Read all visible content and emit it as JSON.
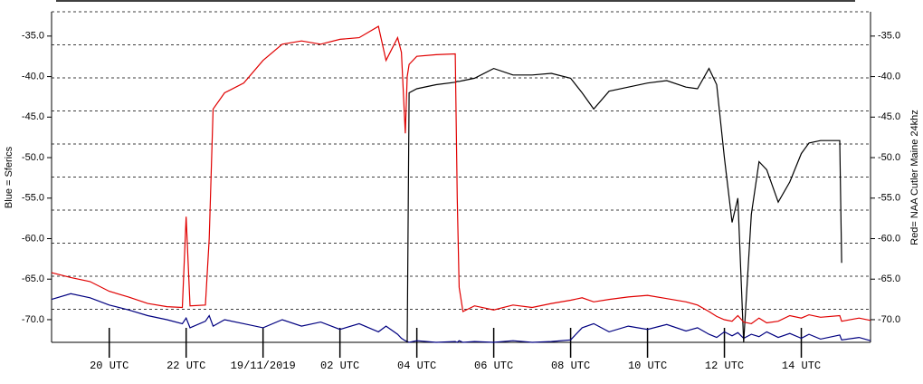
{
  "chart_data": {
    "type": "line",
    "y_label": "Blue = Sferics",
    "y2_label": "Red= NAA Cutler Maine 24khz",
    "x": [
      18.5,
      19,
      19.5,
      20,
      20.5,
      21,
      21.5,
      21.9,
      22.0,
      22.1,
      22.5,
      22.6,
      22.7,
      23,
      23.5,
      24,
      24.5,
      25,
      25.5,
      26,
      26.5,
      27,
      27.2,
      27.5,
      27.6,
      27.7,
      27.75,
      27.8,
      28,
      28.5,
      29,
      29.05,
      29.1,
      29.2,
      29.5,
      30,
      30.5,
      31,
      31.5,
      32,
      32.3,
      32.6,
      33,
      33.5,
      34,
      34.5,
      35,
      35.3,
      35.6,
      35.8,
      36,
      36.2,
      36.35,
      36.5,
      36.7,
      36.9,
      37.1,
      37.4,
      37.7,
      38,
      38.2,
      38.5,
      39,
      39.05,
      39.5,
      39.8
    ],
    "series": [
      {
        "name": "Red",
        "color": "#e00000",
        "axis": "y2",
        "values": [
          -64.2,
          -64.8,
          -65.3,
          -66.5,
          -67.2,
          -68,
          -68.4,
          -68.5,
          -57.3,
          -68.3,
          -68.2,
          -60,
          -44,
          -42,
          -40.8,
          -38,
          -36,
          -35.6,
          -36,
          -35.4,
          -35.2,
          -33.8,
          -38,
          -35.2,
          -37,
          -47,
          -40,
          -38.5,
          -37.5,
          -37.3,
          -37.2,
          -55,
          -66,
          -69,
          -68.3,
          -68.8,
          -68.2,
          -68.5,
          -68,
          -67.6,
          -67.3,
          -67.8,
          -67.5,
          -67.2,
          -67,
          -67.4,
          -67.8,
          -68.2,
          -69,
          -69.6,
          -70,
          -70.2,
          -69.5,
          -70.3,
          -70.5,
          -69.8,
          -70.4,
          -70.2,
          -69.5,
          -69.8,
          -69.4,
          -69.7,
          -69.5,
          -70.2,
          -69.8,
          -70.1
        ]
      },
      {
        "name": "Black",
        "color": "#000000",
        "axis": "y2",
        "values": [
          null,
          null,
          null,
          null,
          null,
          null,
          null,
          null,
          null,
          null,
          null,
          null,
          null,
          null,
          null,
          null,
          null,
          null,
          null,
          null,
          null,
          null,
          null,
          null,
          null,
          null,
          -72.8,
          -42,
          -41.5,
          -41,
          -40.7,
          -40.6,
          -40.6,
          -40.5,
          -40.2,
          -39,
          -39.8,
          -39.8,
          -39.6,
          -40.2,
          -42,
          -44,
          -41.8,
          -41.3,
          -40.8,
          -40.5,
          -41.3,
          -41.5,
          -39,
          -41,
          -50,
          -58,
          -55,
          -72.8,
          -57,
          -50.5,
          -51.5,
          -55.5,
          -53,
          -49.5,
          -48.2,
          -47.9,
          -47.9,
          -63,
          null,
          null
        ]
      },
      {
        "name": "Blue",
        "color": "#000080",
        "values": [
          -67.5,
          -66.8,
          -67.3,
          -68.2,
          -68.8,
          -69.5,
          -70,
          -70.5,
          -69.8,
          -71,
          -70.2,
          -69.5,
          -70.8,
          -70,
          -70.5,
          -71,
          -70,
          -70.8,
          -70.3,
          -71.2,
          -70.5,
          -71.5,
          -70.8,
          -71.8,
          -72.3,
          -72.6,
          -72.7,
          -72.8,
          -72.6,
          -72.8,
          -72.7,
          -72.8,
          -72.6,
          -72.8,
          -72.7,
          -72.8,
          -72.6,
          -72.8,
          -72.7,
          -72.5,
          -71,
          -70.5,
          -71.5,
          -70.8,
          -71.2,
          -70.6,
          -71.4,
          -71,
          -71.8,
          -72.2,
          -71.5,
          -72,
          -71.6,
          -72.3,
          -71.8,
          -72.1,
          -71.5,
          -72.2,
          -71.7,
          -72.3,
          -71.8,
          -72.4,
          -71.9,
          -72.5,
          -72.2,
          -72.6
        ]
      }
    ],
    "xlim": [
      18.5,
      39.8
    ],
    "xticks": [
      {
        "value": 20,
        "label": "20 UTC"
      },
      {
        "value": 22,
        "label": "22 UTC"
      },
      {
        "value": 24,
        "label": "19/11/2019"
      },
      {
        "value": 26,
        "label": "02 UTC"
      },
      {
        "value": 28,
        "label": "04 UTC"
      },
      {
        "value": 30,
        "label": "06 UTC"
      },
      {
        "value": 32,
        "label": "08 UTC"
      },
      {
        "value": 34,
        "label": "10 UTC"
      },
      {
        "value": 36,
        "label": "12 UTC"
      },
      {
        "value": 38,
        "label": "14 UTC"
      }
    ],
    "ylim": [
      -72.8,
      -32
    ],
    "yticks": [
      {
        "value": -35,
        "label": "-35.0"
      },
      {
        "value": -40,
        "label": "-40.0"
      },
      {
        "value": -45,
        "label": "-45.0"
      },
      {
        "value": -50,
        "label": "-50.0"
      },
      {
        "value": -55,
        "label": "-55.0"
      },
      {
        "value": -60,
        "label": "-60.0"
      },
      {
        "value": -65,
        "label": "-65.0"
      },
      {
        "value": -70,
        "label": "-70.0"
      }
    ],
    "y2lim": [
      -72.8,
      -32
    ],
    "y2ticks": [
      {
        "value": -35,
        "label": "-35.0"
      },
      {
        "value": -40,
        "label": "-40.0"
      },
      {
        "value": -45,
        "label": "-45.0"
      },
      {
        "value": -50,
        "label": "-50.0"
      },
      {
        "value": -55,
        "label": "-55.0"
      },
      {
        "value": -60,
        "label": "-60.0"
      },
      {
        "value": -65,
        "label": "-65.0"
      },
      {
        "value": -70,
        "label": "-70.0"
      }
    ],
    "ygrid": [
      -32,
      -36.08,
      -40.16,
      -44.24,
      -48.32,
      -52.4,
      -56.48,
      -60.56,
      -64.64,
      -68.72
    ],
    "grid": true
  }
}
